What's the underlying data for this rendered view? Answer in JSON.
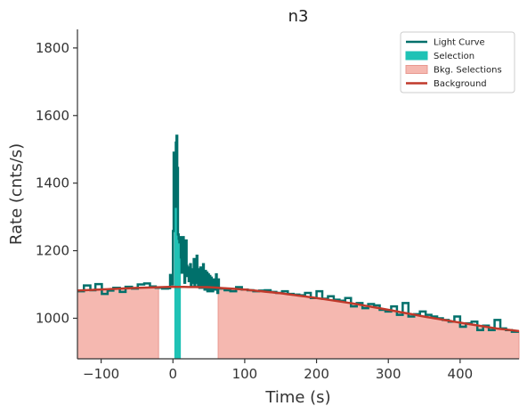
{
  "chart_data": {
    "type": "line",
    "title": "n3",
    "xlabel": "Time (s)",
    "ylabel": "Rate (cnts/s)",
    "xlim": [
      -133,
      482
    ],
    "ylim": [
      880,
      1855
    ],
    "xticks": [
      -100,
      0,
      100,
      200,
      300,
      400
    ],
    "yticks": [
      1000,
      1200,
      1400,
      1600,
      1800
    ],
    "xtick_labels": [
      "−100",
      "0",
      "100",
      "200",
      "300",
      "400"
    ],
    "ytick_labels": [
      "1000",
      "1200",
      "1400",
      "1600",
      "1800"
    ],
    "legend_position": "top-right",
    "legend": [
      "Light Curve",
      "Selection",
      "Bkg. Selections",
      "Background"
    ],
    "colors": {
      "light_curve": "#00706b",
      "selection": "#1fc2b5",
      "bkg_selection_fill": "#f5b8b0",
      "bkg_selection_edge": "#e89890",
      "background": "#c0392b",
      "axis": "#333333"
    },
    "selection_interval": [
      2,
      11
    ],
    "bkg_intervals": [
      [
        -133,
        -20
      ],
      [
        63,
        482
      ]
    ],
    "background_model": {
      "x": [
        -133,
        -50,
        0,
        50,
        100,
        150,
        200,
        250,
        300,
        350,
        400,
        450,
        482
      ],
      "y": [
        1082,
        1090,
        1093,
        1092,
        1085,
        1074,
        1060,
        1044,
        1025,
        1005,
        987,
        970,
        962
      ]
    },
    "light_curve": {
      "x": [
        -133,
        -124,
        -115,
        -108,
        -99,
        -91,
        -83,
        -74,
        -66,
        -57,
        -49,
        -40,
        -32,
        -24,
        -15,
        -7,
        -4,
        -2,
        0,
        1,
        2,
        3,
        4,
        5,
        6,
        7,
        8,
        9,
        10,
        11,
        12,
        13,
        14,
        15,
        16,
        17,
        18,
        19,
        20,
        21,
        22,
        23,
        24,
        25,
        26,
        27,
        28,
        29,
        30,
        31,
        32,
        33,
        34,
        35,
        36,
        37,
        38,
        39,
        40,
        41,
        42,
        43,
        44,
        45,
        46,
        47,
        48,
        49,
        50,
        51,
        52,
        53,
        54,
        55,
        56,
        57,
        58,
        59,
        60,
        61,
        62,
        63,
        64,
        72,
        80,
        88,
        96,
        104,
        112,
        120,
        128,
        136,
        144,
        152,
        160,
        168,
        176,
        184,
        192,
        200,
        208,
        216,
        224,
        232,
        240,
        248,
        256,
        264,
        272,
        280,
        288,
        296,
        304,
        312,
        320,
        328,
        336,
        344,
        352,
        360,
        368,
        376,
        384,
        392,
        400,
        408,
        416,
        424,
        432,
        440,
        448,
        456,
        464,
        472,
        482
      ],
      "y": [
        1080,
        1097,
        1083,
        1101,
        1072,
        1082,
        1090,
        1078,
        1093,
        1088,
        1100,
        1103,
        1094,
        1090,
        1088,
        1089,
        1128,
        1100,
        1258,
        1490,
        1440,
        1330,
        1520,
        1540,
        1445,
        1248,
        1235,
        1225,
        1240,
        1180,
        1135,
        1160,
        1240,
        1170,
        1105,
        1170,
        1230,
        1155,
        1125,
        1150,
        1110,
        1145,
        1160,
        1095,
        1145,
        1105,
        1135,
        1175,
        1095,
        1105,
        1120,
        1185,
        1145,
        1095,
        1130,
        1090,
        1150,
        1145,
        1090,
        1115,
        1160,
        1120,
        1085,
        1140,
        1100,
        1135,
        1080,
        1130,
        1095,
        1125,
        1080,
        1120,
        1110,
        1080,
        1115,
        1095,
        1110,
        1085,
        1130,
        1090,
        1075,
        1115,
        1088,
        1083,
        1080,
        1092,
        1085,
        1083,
        1080,
        1082,
        1083,
        1078,
        1075,
        1080,
        1072,
        1070,
        1068,
        1075,
        1060,
        1080,
        1058,
        1065,
        1055,
        1052,
        1060,
        1035,
        1045,
        1030,
        1042,
        1038,
        1025,
        1020,
        1035,
        1010,
        1045,
        1005,
        1012,
        1020,
        1010,
        1005,
        1000,
        995,
        990,
        1005,
        975,
        985,
        990,
        965,
        978,
        965,
        995,
        970,
        965,
        960,
        962
      ]
    }
  }
}
